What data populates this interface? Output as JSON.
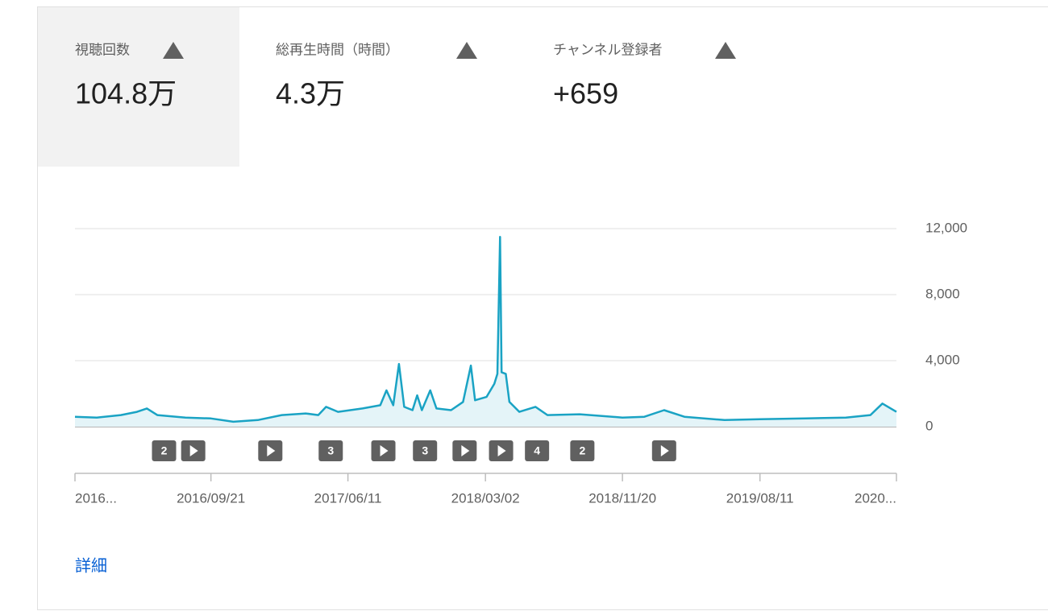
{
  "tabs": [
    {
      "label": "視聴回数",
      "value": "104.8万"
    },
    {
      "label": "総再生時間（時間）",
      "value": "4.3万"
    },
    {
      "label": "チャンネル登録者",
      "value": "+659"
    }
  ],
  "chart_data": {
    "type": "line",
    "color": "#1aa3c4",
    "fill": "#e4f4f8",
    "grid": true,
    "x": [
      "2016-01-04",
      "2016-02-15",
      "2016-04-01",
      "2016-05-02",
      "2016-05-21",
      "2016-06-10",
      "2016-08-03",
      "2016-09-21",
      "2016-11-03",
      "2016-12-20",
      "2017-02-04",
      "2017-03-22",
      "2017-04-15",
      "2017-04-30",
      "2017-05-23",
      "2017-07-09",
      "2017-08-12",
      "2017-08-24",
      "2017-09-06",
      "2017-09-17",
      "2017-09-27",
      "2017-10-13",
      "2017-10-22",
      "2017-10-31",
      "2017-11-16",
      "2017-11-28",
      "2017-12-26",
      "2018-01-18",
      "2018-02-02",
      "2018-02-10",
      "2018-03-04",
      "2018-03-19",
      "2018-03-25",
      "2018-03-30",
      "2018-04-02",
      "2018-04-10",
      "2018-04-17",
      "2018-05-06",
      "2018-06-06",
      "2018-06-29",
      "2018-08-30",
      "2018-11-20",
      "2019-01-01",
      "2019-02-08",
      "2019-03-19",
      "2019-06-04",
      "2019-08-11",
      "2019-11-07",
      "2020-01-23",
      "2020-03-10",
      "2020-04-02",
      "2020-04-29"
    ],
    "values": [
      600,
      550,
      700,
      900,
      1100,
      700,
      550,
      500,
      300,
      400,
      700,
      800,
      700,
      1200,
      900,
      1100,
      1300,
      2200,
      1300,
      3800,
      1200,
      1000,
      1900,
      1000,
      2200,
      1100,
      1000,
      1500,
      3700,
      1600,
      1800,
      2600,
      3200,
      11500,
      3300,
      3200,
      1500,
      900,
      1200,
      700,
      750,
      550,
      600,
      1000,
      600,
      400,
      450,
      500,
      550,
      700,
      1400,
      900
    ],
    "xlim": [
      "2016-01-04",
      "2020-04-29"
    ],
    "xticks": [
      {
        "value": "2016-01-04",
        "label": "2016..."
      },
      {
        "value": "2016-09-21",
        "label": "2016/09/21"
      },
      {
        "value": "2017-06-11",
        "label": "2017/06/11"
      },
      {
        "value": "2018-03-02",
        "label": "2018/03/02"
      },
      {
        "value": "2018-11-20",
        "label": "2018/11/20"
      },
      {
        "value": "2019-08-11",
        "label": "2019/08/11"
      },
      {
        "value": "2020-04-29",
        "label": "2020..."
      }
    ],
    "ylim": [
      0,
      12000
    ],
    "yticks": [
      0,
      {
        "value": 4000,
        "label": "4,000"
      },
      {
        "value": 8000,
        "label": "8,000"
      },
      {
        "value": 12000,
        "label": "12,000"
      }
    ],
    "annotations": [
      {
        "x": "2016-06-23",
        "label": "2"
      },
      {
        "x": "2016-08-18"
      },
      {
        "x": "2017-01-13"
      },
      {
        "x": "2017-05-09",
        "label": "3"
      },
      {
        "x": "2017-08-18"
      },
      {
        "x": "2017-11-06",
        "label": "3"
      },
      {
        "x": "2018-01-21"
      },
      {
        "x": "2018-04-01"
      },
      {
        "x": "2018-06-09",
        "label": "4"
      },
      {
        "x": "2018-09-04",
        "label": "2"
      },
      {
        "x": "2019-02-08"
      }
    ]
  },
  "link": "詳細"
}
